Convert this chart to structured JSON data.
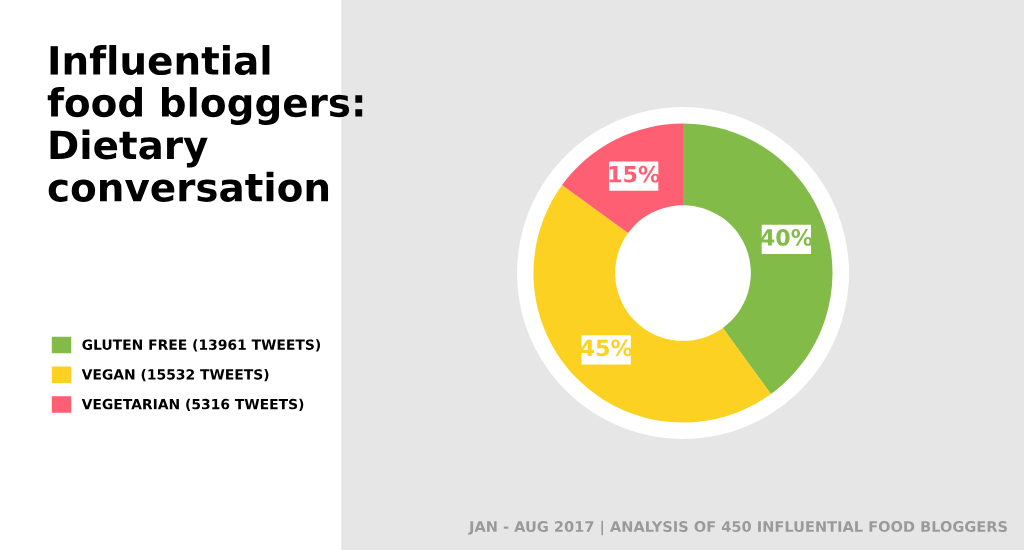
{
  "chart_data": {
    "type": "donut",
    "title": "Influential\nfood bloggers:\nDietary\nconversation",
    "categories": [
      "GLUTEN FREE (13961 TWEETS)",
      "VEGAN (15532 TWEETS)",
      "VEGETARIAN (5316 TWEETS)"
    ],
    "values": [
      40,
      45,
      15
    ],
    "colors": [
      "#82bb47",
      "#fdd122",
      "#ff5f73"
    ],
    "value_labels": [
      "40%",
      "45%",
      "15%"
    ],
    "legend": "left",
    "annotations": [
      "JAN - AUG 2017 | ANALYSIS OF 450 INFLUENTIAL FOOD BLOGGERS"
    ]
  }
}
